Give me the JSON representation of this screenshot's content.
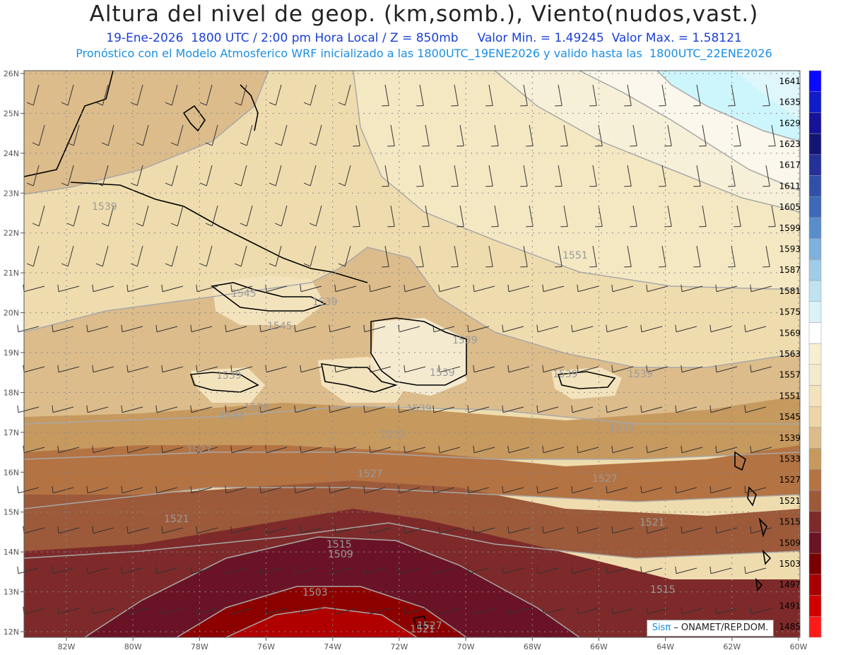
{
  "header": {
    "title": "Altura del nivel de geop. (km,somb.), Viento(nudos,vast.)",
    "date": "19-Ene-2026",
    "time": "1800 UTC / 2:00 pm Hora Local / Z = 850mb",
    "min_label": "Valor Min. = 1.49245",
    "max_label": "Valor Max. = 1.58121",
    "model_line": "Pronóstico con el Modelo Atmosferico WRF inicializado a las 1800UTC_19ENE2026 y valido hasta las  1800UTC_22ENE2026"
  },
  "map": {
    "lon_ticks": [
      "82W",
      "80W",
      "78W",
      "76W",
      "74W",
      "72W",
      "70W",
      "68W",
      "66W",
      "64W",
      "62W",
      "60W"
    ],
    "lat_ticks": [
      "26N",
      "25N",
      "24N",
      "23N",
      "22N",
      "21N",
      "20N",
      "19N",
      "18N",
      "17N",
      "16N",
      "15N",
      "14N",
      "13N",
      "12N"
    ],
    "contour_labels": [
      "1539",
      "1545",
      "1539",
      "1545",
      "1539",
      "1539",
      "1539",
      "1533",
      "1539",
      "1539",
      "1539",
      "1539",
      "1533",
      "1533",
      "1527",
      "1527",
      "1527",
      "1521",
      "1521",
      "1527",
      "1515",
      "1521",
      "1509",
      "1503",
      "1515",
      "1551"
    ]
  },
  "colorbar": {
    "levels": [
      "1641",
      "1635",
      "1629",
      "1623",
      "1617",
      "1611",
      "1605",
      "1599",
      "1593",
      "1587",
      "1581",
      "1575",
      "1569",
      "1563",
      "1557",
      "1551",
      "1545",
      "1539",
      "1533",
      "1527",
      "1521",
      "1515",
      "1509",
      "1503",
      "1497",
      "1491",
      "1485"
    ],
    "colors": [
      "#0a0aff",
      "#0f1cc8",
      "#14139a",
      "#141477",
      "#25309a",
      "#3050a8",
      "#3d69b8",
      "#5a8ecb",
      "#7eb0dc",
      "#9fcce8",
      "#bfe3f1",
      "#d9f3f9",
      "#ffffff",
      "#f7eed3",
      "#f4ead0",
      "#f2e3bd",
      "#ecd6a6",
      "#dcbc8b",
      "#c6995f",
      "#b47343",
      "#9c5a3a",
      "#7e2a2a",
      "#6b1326",
      "#7a0000",
      "#a80000",
      "#d10000",
      "#ff1a1a"
    ]
  },
  "credit": {
    "brand": "Sisπ",
    "text": " – ONAMET/REP.DOM."
  }
}
